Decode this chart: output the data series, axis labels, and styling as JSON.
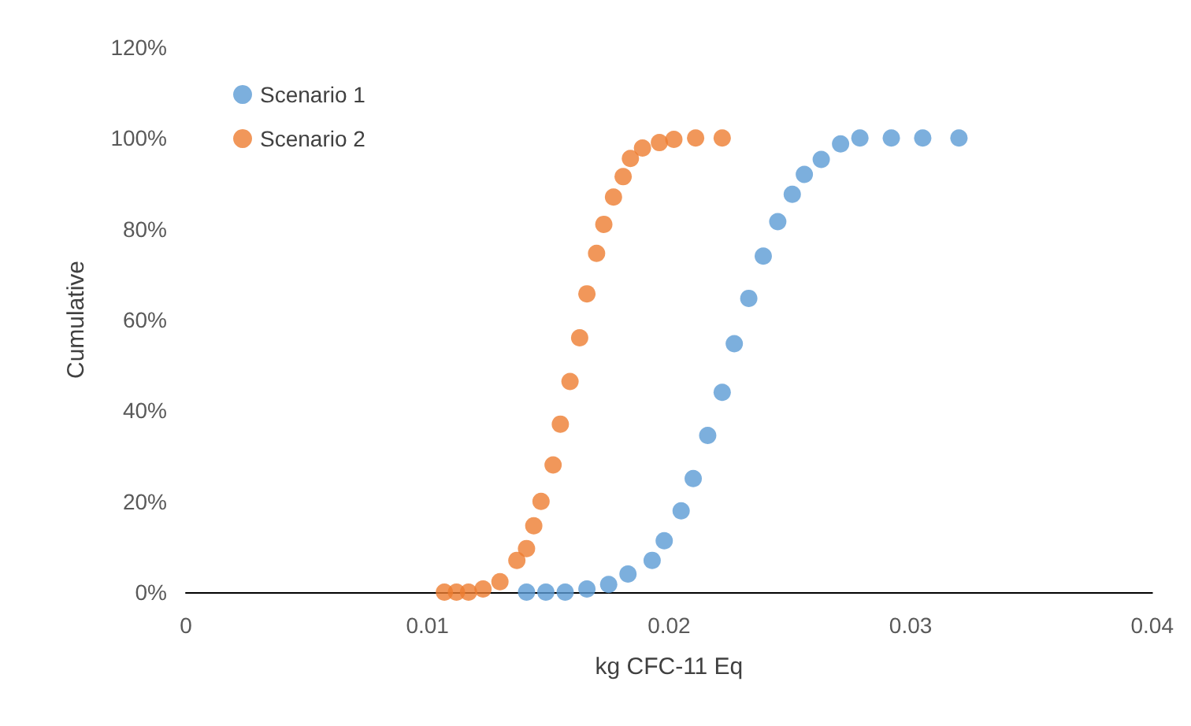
{
  "chart_data": {
    "type": "scatter",
    "xlabel": "kg CFC-11 Eq",
    "ylabel": "Cumulative",
    "xlim": [
      0,
      0.04
    ],
    "xticks": [
      0,
      0.01,
      0.02,
      0.03,
      0.04
    ],
    "ylim": [
      0,
      120
    ],
    "yticks": [
      {
        "value": 0,
        "label": "0%"
      },
      {
        "value": 20,
        "label": "20%"
      },
      {
        "value": 40,
        "label": "40%"
      },
      {
        "value": 60,
        "label": "60%"
      },
      {
        "value": 80,
        "label": "80%"
      },
      {
        "value": 100,
        "label": "100%"
      },
      {
        "value": 120,
        "label": "120%"
      }
    ],
    "grid": false,
    "legend": "top left",
    "marker": "circle",
    "series": [
      {
        "name": "Scenario 1",
        "color": "#5b9bd5",
        "x": [
          0.0141,
          0.0149,
          0.0157,
          0.0166,
          0.0175,
          0.0183,
          0.0193,
          0.0198,
          0.0205,
          0.021,
          0.0216,
          0.0222,
          0.0227,
          0.0233,
          0.0239,
          0.0245,
          0.0251,
          0.0256,
          0.0263,
          0.0271,
          0.0279,
          0.0292,
          0.0305,
          0.032
        ],
        "values": [
          0,
          0,
          0,
          0.7,
          1.7,
          4,
          7,
          11.3,
          17.9,
          25,
          34.5,
          44,
          54.7,
          64.7,
          74,
          81.6,
          87.6,
          92,
          95.3,
          98.7,
          100,
          100,
          100,
          100
        ]
      },
      {
        "name": "Scenario 2",
        "color": "#ed7d31",
        "x": [
          0.0107,
          0.0112,
          0.0117,
          0.0123,
          0.013,
          0.0137,
          0.0141,
          0.0144,
          0.0147,
          0.0152,
          0.0155,
          0.0159,
          0.0163,
          0.0166,
          0.017,
          0.0173,
          0.0177,
          0.0181,
          0.0184,
          0.0189,
          0.0196,
          0.0202,
          0.0211,
          0.0222
        ],
        "values": [
          0,
          0,
          0,
          0.7,
          2.3,
          7,
          9.6,
          14.6,
          20,
          28,
          37,
          46.4,
          56,
          65.7,
          74.6,
          81,
          87,
          91.5,
          95.5,
          97.8,
          99,
          99.7,
          100,
          100
        ]
      }
    ]
  }
}
